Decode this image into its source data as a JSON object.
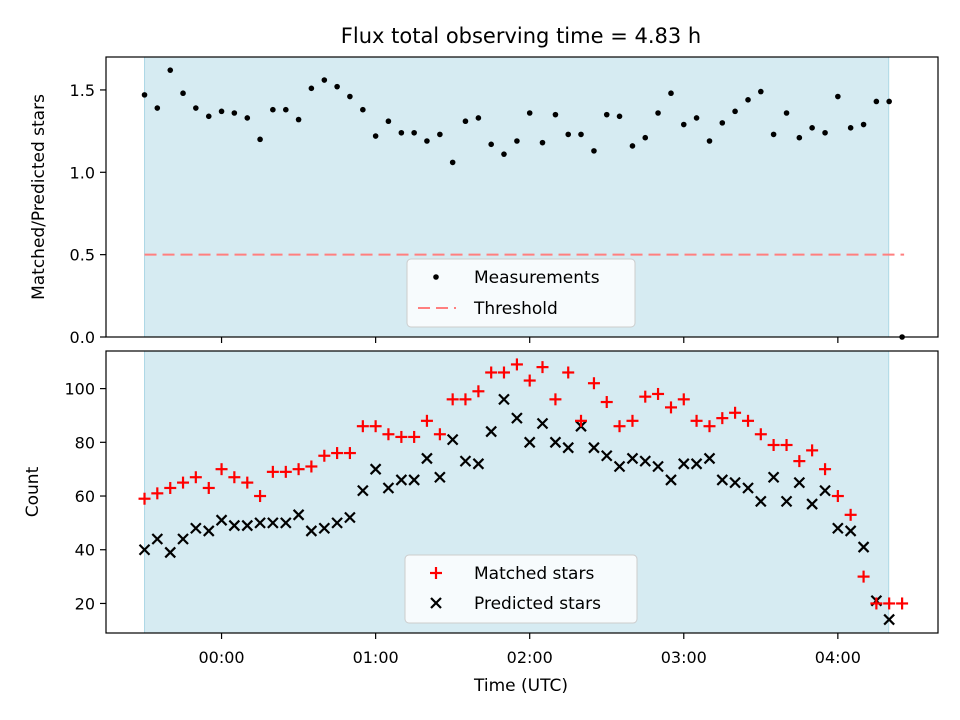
{
  "chart_data": [
    {
      "type": "scatter",
      "title": "Flux total observing time = 4.83 h",
      "xlabel": "",
      "ylabel": "Matched/Predicted stars",
      "xlim": [
        -0.75,
        4.65
      ],
      "ylim": [
        0.0,
        1.7
      ],
      "yticks": [
        0.0,
        0.5,
        1.0,
        1.5
      ],
      "ytick_labels": [
        "0.0",
        "0.5",
        "1.0",
        "1.5"
      ],
      "xticks": [
        0,
        1,
        2,
        3,
        4
      ],
      "observing_window": [
        -0.5,
        4.33
      ],
      "threshold": {
        "name": "Threshold",
        "value": 0.5,
        "range": [
          -0.5,
          4.43
        ],
        "color": "#ff7f7f"
      },
      "legend": {
        "location": "lower-center",
        "entries": [
          "Measurements",
          "Threshold"
        ]
      },
      "series": [
        {
          "name": "Measurements",
          "x": [
            -0.5,
            -0.417,
            -0.333,
            -0.25,
            -0.167,
            -0.083,
            0.0,
            0.083,
            0.167,
            0.25,
            0.333,
            0.417,
            0.5,
            0.583,
            0.667,
            0.75,
            0.833,
            0.917,
            1.0,
            1.083,
            1.167,
            1.25,
            1.333,
            1.417,
            1.5,
            1.583,
            1.667,
            1.75,
            1.833,
            1.917,
            2.0,
            2.083,
            2.167,
            2.25,
            2.333,
            2.417,
            2.5,
            2.583,
            2.667,
            2.75,
            2.833,
            2.917,
            3.0,
            3.083,
            3.167,
            3.25,
            3.333,
            3.417,
            3.5,
            3.583,
            3.667,
            3.75,
            3.833,
            3.917,
            4.0,
            4.083,
            4.167,
            4.25,
            4.333,
            4.417
          ],
          "values": [
            1.47,
            1.39,
            1.62,
            1.48,
            1.39,
            1.34,
            1.37,
            1.36,
            1.33,
            1.2,
            1.38,
            1.38,
            1.32,
            1.51,
            1.56,
            1.52,
            1.46,
            1.38,
            1.22,
            1.31,
            1.24,
            1.24,
            1.19,
            1.23,
            1.06,
            1.31,
            1.33,
            1.17,
            1.11,
            1.19,
            1.36,
            1.18,
            1.35,
            1.23,
            1.23,
            1.13,
            1.35,
            1.34,
            1.16,
            1.21,
            1.36,
            1.48,
            1.29,
            1.33,
            1.19,
            1.3,
            1.37,
            1.44,
            1.49,
            1.23,
            1.36,
            1.21,
            1.27,
            1.24,
            1.46,
            1.27,
            1.29,
            1.43,
            1.43,
            0.0
          ],
          "color": "#000000"
        }
      ]
    },
    {
      "type": "scatter",
      "title": "",
      "xlabel": "Time (UTC)",
      "ylabel": "Count",
      "xlim": [
        -0.75,
        4.65
      ],
      "ylim": [
        9,
        114
      ],
      "yticks": [
        20,
        40,
        60,
        80,
        100
      ],
      "ytick_labels": [
        "20",
        "40",
        "60",
        "80",
        "100"
      ],
      "xticks": [
        0,
        1,
        2,
        3,
        4
      ],
      "xtick_labels": [
        "00:00",
        "01:00",
        "02:00",
        "03:00",
        "04:00"
      ],
      "observing_window": [
        -0.5,
        4.33
      ],
      "legend": {
        "location": "lower-center",
        "entries": [
          "Matched stars",
          "Predicted stars"
        ]
      },
      "series": [
        {
          "name": "Matched stars",
          "marker": "plus",
          "color": "#ff0000",
          "x": [
            -0.5,
            -0.417,
            -0.333,
            -0.25,
            -0.167,
            -0.083,
            0.0,
            0.083,
            0.167,
            0.25,
            0.333,
            0.417,
            0.5,
            0.583,
            0.667,
            0.75,
            0.833,
            0.917,
            1.0,
            1.083,
            1.167,
            1.25,
            1.333,
            1.417,
            1.5,
            1.583,
            1.667,
            1.75,
            1.833,
            1.917,
            2.0,
            2.083,
            2.167,
            2.25,
            2.333,
            2.417,
            2.5,
            2.583,
            2.667,
            2.75,
            2.833,
            2.917,
            3.0,
            3.083,
            3.167,
            3.25,
            3.333,
            3.417,
            3.5,
            3.583,
            3.667,
            3.75,
            3.833,
            3.917,
            4.0,
            4.083,
            4.167,
            4.25,
            4.333,
            4.417
          ],
          "values": [
            59,
            61,
            63,
            65,
            67,
            63,
            70,
            67,
            65,
            60,
            69,
            69,
            70,
            71,
            75,
            76,
            76,
            86,
            86,
            83,
            82,
            82,
            88,
            83,
            96,
            96,
            99,
            106,
            106,
            109,
            103,
            108,
            96,
            106,
            88,
            102,
            95,
            86,
            88,
            97,
            98,
            93,
            96,
            88,
            86,
            89,
            91,
            88,
            83,
            79,
            79,
            73,
            77,
            70,
            60,
            53,
            30,
            20,
            20,
            20
          ]
        },
        {
          "name": "Predicted stars",
          "marker": "x",
          "color": "#000000",
          "x": [
            -0.5,
            -0.417,
            -0.333,
            -0.25,
            -0.167,
            -0.083,
            0.0,
            0.083,
            0.167,
            0.25,
            0.333,
            0.417,
            0.5,
            0.583,
            0.667,
            0.75,
            0.833,
            0.917,
            1.0,
            1.083,
            1.167,
            1.25,
            1.333,
            1.417,
            1.5,
            1.583,
            1.667,
            1.75,
            1.833,
            1.917,
            2.0,
            2.083,
            2.167,
            2.25,
            2.333,
            2.417,
            2.5,
            2.583,
            2.667,
            2.75,
            2.833,
            2.917,
            3.0,
            3.083,
            3.167,
            3.25,
            3.333,
            3.417,
            3.5,
            3.583,
            3.667,
            3.75,
            3.833,
            3.917,
            4.0,
            4.083,
            4.167,
            4.25,
            4.333
          ],
          "values": [
            40,
            44,
            39,
            44,
            48,
            47,
            51,
            49,
            49,
            50,
            50,
            50,
            53,
            47,
            48,
            50,
            52,
            62,
            70,
            63,
            66,
            66,
            74,
            67,
            81,
            73,
            72,
            84,
            96,
            89,
            80,
            87,
            80,
            78,
            86,
            78,
            75,
            71,
            74,
            73,
            71,
            66,
            72,
            72,
            74,
            66,
            65,
            63,
            58,
            67,
            58,
            65,
            57,
            62,
            48,
            47,
            41,
            21,
            14
          ]
        }
      ]
    }
  ]
}
